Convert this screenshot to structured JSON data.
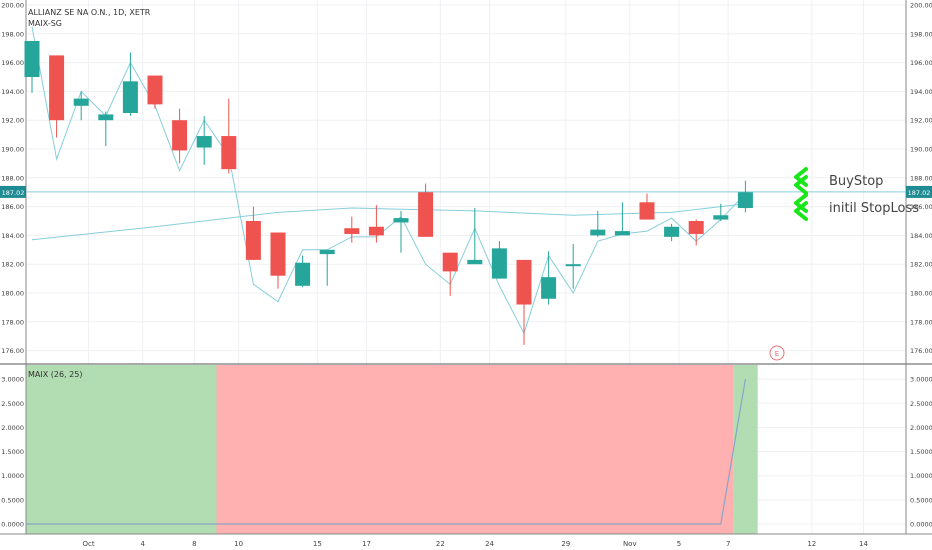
{
  "header": {
    "symbol_line": "ALLIANZ SE NA O.N., 1D, XETR",
    "indicator_line": "MAIX-SG"
  },
  "lower_pane": {
    "title": "MAIX (26, 25)",
    "earnings_marker": "E"
  },
  "annotations": {
    "buy_stop": "BuyStop",
    "stop_loss": "initil StopLoss"
  },
  "price_marker": "187.02",
  "colors": {
    "up": "#26a69a",
    "down": "#ef5350",
    "line": "#87cedb",
    "arrow": "#19e619",
    "band_green": "#b2dcb2",
    "band_red": "#ffb0b0"
  },
  "chart_data": [
    {
      "type": "candlestick",
      "title": "ALLIANZ SE NA O.N., 1D, XETR",
      "ylim": [
        175,
        200
      ],
      "y_ticks": [
        "176.00",
        "178.00",
        "180.00",
        "182.00",
        "184.00",
        "186.00",
        "188.00",
        "190.00",
        "192.00",
        "194.00",
        "196.00",
        "198.00",
        "200.00"
      ],
      "x_ticks": [
        "Oct",
        "4",
        "8",
        "10",
        "15",
        "17",
        "22",
        "24",
        "29",
        "Nov",
        "5",
        "7",
        "12",
        "14"
      ],
      "last_price": 187.02,
      "candles": [
        {
          "o": 195.0,
          "h": 197.5,
          "l": 193.9,
          "c": 197.5
        },
        {
          "o": 196.5,
          "h": 196.5,
          "l": 190.8,
          "c": 192.0
        },
        {
          "o": 193.0,
          "h": 194.0,
          "l": 192.0,
          "c": 193.5
        },
        {
          "o": 192.0,
          "h": 192.6,
          "l": 190.2,
          "c": 192.4
        },
        {
          "o": 192.5,
          "h": 196.7,
          "l": 192.3,
          "c": 194.7
        },
        {
          "o": 195.1,
          "h": 195.1,
          "l": 192.8,
          "c": 193.1
        },
        {
          "o": 192.0,
          "h": 192.8,
          "l": 189.0,
          "c": 189.9
        },
        {
          "o": 190.1,
          "h": 192.3,
          "l": 188.9,
          "c": 190.9
        },
        {
          "o": 190.9,
          "h": 193.5,
          "l": 188.3,
          "c": 188.6
        },
        {
          "o": 185.0,
          "h": 186.0,
          "l": 182.3,
          "c": 182.3
        },
        {
          "o": 184.2,
          "h": 184.2,
          "l": 180.3,
          "c": 181.2
        },
        {
          "o": 180.5,
          "h": 182.6,
          "l": 180.4,
          "c": 182.1
        },
        {
          "o": 182.7,
          "h": 183.0,
          "l": 180.5,
          "c": 183.0
        },
        {
          "o": 184.5,
          "h": 185.3,
          "l": 183.5,
          "c": 184.1
        },
        {
          "o": 184.6,
          "h": 186.1,
          "l": 183.5,
          "c": 184.0
        },
        {
          "o": 184.9,
          "h": 185.7,
          "l": 182.8,
          "c": 185.2
        },
        {
          "o": 187.0,
          "h": 187.6,
          "l": 183.9,
          "c": 183.9
        },
        {
          "o": 182.8,
          "h": 182.8,
          "l": 179.8,
          "c": 181.5
        },
        {
          "o": 182.0,
          "h": 185.9,
          "l": 182.0,
          "c": 182.3
        },
        {
          "o": 181.0,
          "h": 183.6,
          "l": 181.0,
          "c": 183.1
        },
        {
          "o": 182.3,
          "h": 182.3,
          "l": 176.4,
          "c": 179.2
        },
        {
          "o": 179.6,
          "h": 182.9,
          "l": 179.2,
          "c": 181.1
        },
        {
          "o": 181.9,
          "h": 183.4,
          "l": 180.3,
          "c": 182.0
        },
        {
          "o": 184.0,
          "h": 185.7,
          "l": 183.9,
          "c": 184.4
        },
        {
          "o": 184.0,
          "h": 186.3,
          "l": 184.0,
          "c": 184.3
        },
        {
          "o": 186.3,
          "h": 186.9,
          "l": 185.2,
          "c": 185.1
        },
        {
          "o": 183.9,
          "h": 184.8,
          "l": 183.6,
          "c": 184.6
        },
        {
          "o": 185.0,
          "h": 185.1,
          "l": 183.3,
          "c": 184.1
        },
        {
          "o": 185.1,
          "h": 186.2,
          "l": 185.0,
          "c": 185.4
        },
        {
          "o": 185.9,
          "h": 187.8,
          "l": 185.6,
          "c": 187.0
        }
      ],
      "close_line": [
        198.5,
        189.3,
        194.0,
        192.3,
        196.0,
        193.0,
        188.5,
        192.0,
        189.5,
        180.6,
        179.4,
        183.0,
        183.0,
        183.9,
        183.9,
        185.3,
        182.0,
        180.6,
        184.5,
        180.5,
        177.2,
        182.6,
        180.0,
        183.6,
        184.1,
        184.3,
        185.2,
        183.6,
        185.1,
        186.9
      ],
      "ma_line": [
        {
          "i": 0,
          "v": 183.7
        },
        {
          "i": 5,
          "v": 184.6
        },
        {
          "i": 10,
          "v": 185.6
        },
        {
          "i": 13,
          "v": 185.9
        },
        {
          "i": 18,
          "v": 185.7
        },
        {
          "i": 22,
          "v": 185.4
        },
        {
          "i": 26,
          "v": 185.6
        },
        {
          "i": 29,
          "v": 186.2
        }
      ]
    },
    {
      "type": "area",
      "title": "MAIX (26, 25)",
      "ylim": [
        -0.2,
        3.2
      ],
      "y_ticks": [
        "0.0000",
        "0.5000",
        "1.0000",
        "1.5000",
        "2.0000",
        "2.5000",
        "3.0000"
      ],
      "bands": [
        {
          "from": -0.5,
          "to": 7.5,
          "color": "green"
        },
        {
          "from": 7.5,
          "to": 28.5,
          "color": "red"
        },
        {
          "from": 28.5,
          "to": 29.5,
          "color": "green"
        }
      ],
      "values": [
        0,
        0,
        0,
        0,
        0,
        0,
        0,
        0,
        0,
        0,
        0,
        0,
        0,
        0,
        0,
        0,
        0,
        0,
        0,
        0,
        0,
        0,
        0,
        0,
        0,
        0,
        0,
        0,
        0,
        3.0
      ]
    }
  ]
}
